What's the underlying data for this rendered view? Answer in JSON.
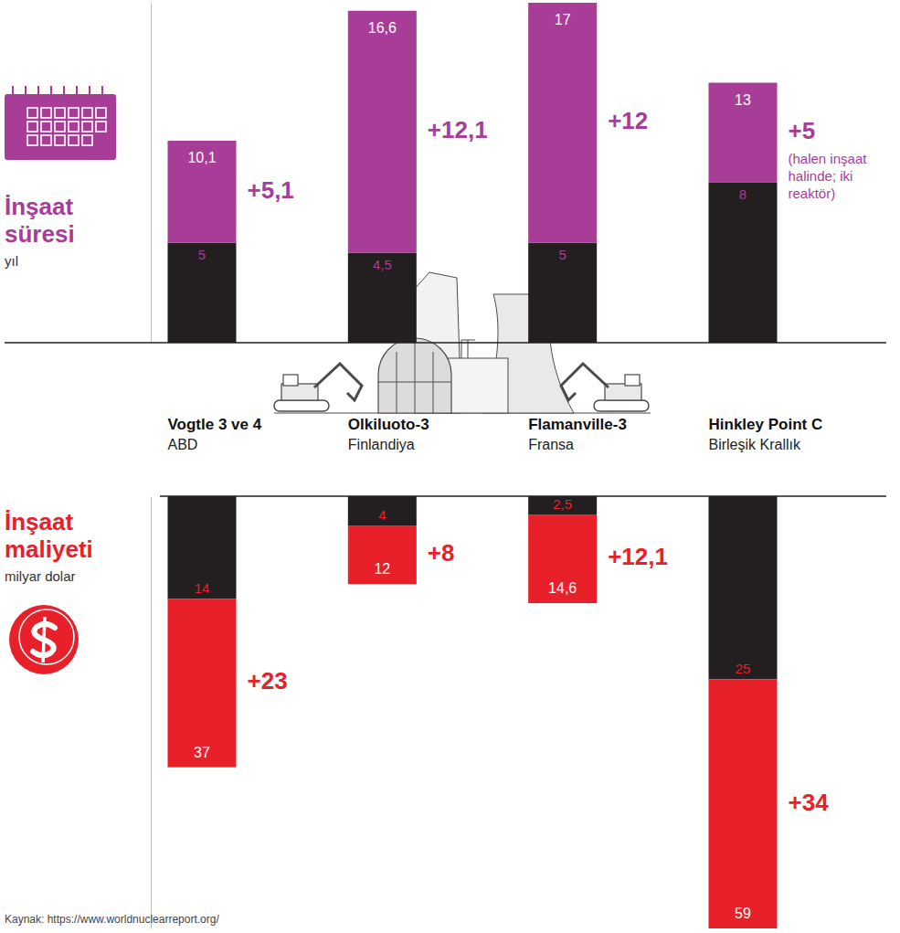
{
  "chart_data": {
    "type": "bar",
    "stacked": true,
    "data_labels": true,
    "tick_labels": false,
    "categories": [
      "Vogtle 3 ve 4",
      "Olkiluoto-3",
      "Flamanville-3",
      "Hinkley Point C"
    ],
    "countries": [
      "ABD",
      "Finlandiya",
      "Fransa",
      "Birleşik Krallık"
    ],
    "source": "Kaynak: https://www.worldnuclearreport.org/",
    "panels": [
      {
        "title": "İnşaat süresi",
        "unit": "yıl",
        "ylim": [
          0,
          17
        ],
        "series": [
          {
            "color": "#231f20",
            "values": [
              5,
              4.5,
              5,
              8
            ],
            "value_labels": [
              "5",
              "4,5",
              "5",
              "8"
            ]
          },
          {
            "color": "#a83d98",
            "values": [
              5.1,
              12.1,
              12,
              5
            ],
            "value_labels": [
              "+5,1",
              "+12,1",
              "+12",
              "+5"
            ]
          }
        ],
        "totals": [
          10.1,
          16.6,
          17,
          13
        ],
        "total_labels": [
          "10,1",
          "16,6",
          "17",
          "13"
        ],
        "notes": [
          null,
          null,
          null,
          "(halen inşaat halinde; iki reaktör)"
        ]
      },
      {
        "title": "İnşaat maliyeti",
        "unit": "milyar dolar",
        "ylim": [
          0,
          59
        ],
        "series": [
          {
            "color": "#231f20",
            "values": [
              14,
              4,
              2.5,
              25
            ],
            "value_labels": [
              "14",
              "4",
              "2,5",
              "25"
            ]
          },
          {
            "color": "#e8202a",
            "values": [
              23,
              8,
              12.1,
              34
            ],
            "value_labels": [
              "+23",
              "+8",
              "+12,1",
              "+34"
            ]
          }
        ],
        "totals": [
          37,
          12,
          14.6,
          59
        ],
        "total_labels": [
          "37",
          "12",
          "14,6",
          "59"
        ]
      }
    ]
  }
}
